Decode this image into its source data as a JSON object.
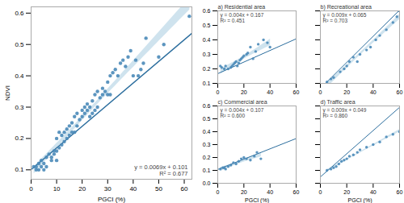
{
  "chart_data": [
    {
      "type": "scatter",
      "x": [
        1,
        2,
        2,
        3,
        3,
        4,
        4,
        5,
        5,
        6,
        6,
        7,
        8,
        8,
        9,
        9,
        10,
        10,
        10,
        11,
        11,
        12,
        12,
        13,
        13,
        14,
        14,
        15,
        15,
        16,
        16,
        17,
        17,
        18,
        18,
        19,
        20,
        20,
        21,
        21,
        22,
        22,
        23,
        23,
        24,
        24,
        25,
        25,
        26,
        26,
        27,
        28,
        28,
        29,
        30,
        30,
        31,
        31,
        32,
        33,
        34,
        35,
        36,
        37,
        38,
        39,
        40,
        41,
        42,
        43,
        44,
        45,
        50,
        52,
        62
      ],
      "values": [
        0.11,
        0.1,
        0.11,
        0.1,
        0.12,
        0.11,
        0.13,
        0.1,
        0.12,
        0.11,
        0.14,
        0.15,
        0.13,
        0.14,
        0.15,
        0.16,
        0.13,
        0.16,
        0.2,
        0.17,
        0.22,
        0.18,
        0.21,
        0.19,
        0.22,
        0.2,
        0.23,
        0.21,
        0.24,
        0.22,
        0.25,
        0.22,
        0.27,
        0.24,
        0.28,
        0.26,
        0.27,
        0.29,
        0.28,
        0.3,
        0.29,
        0.31,
        0.27,
        0.3,
        0.28,
        0.32,
        0.29,
        0.34,
        0.3,
        0.35,
        0.33,
        0.34,
        0.36,
        0.35,
        0.34,
        0.38,
        0.34,
        0.4,
        0.41,
        0.42,
        0.4,
        0.44,
        0.45,
        0.43,
        0.46,
        0.48,
        0.4,
        0.45,
        0.4,
        0.42,
        0.44,
        0.52,
        0.46,
        0.5,
        0.59
      ],
      "color": "#4a89b8",
      "fit_line": {
        "slope": 0.0069,
        "intercept": 0.101,
        "color": "#2c6e9e"
      },
      "ci_band": {
        "color": "#a8cce0"
      },
      "annotations": [
        "y = 0.0069x + 0.101",
        "R² = 0.677"
      ],
      "xlabel": "PGCI (%)",
      "ylabel": "NDVI",
      "xlim": [
        0,
        63
      ],
      "ylim": [
        0.07,
        0.62
      ],
      "xticks": [
        0,
        10,
        20,
        30,
        40,
        50,
        60
      ],
      "yticks": [
        0.1,
        0.2,
        0.3,
        0.4,
        0.5,
        0.6
      ]
    },
    {
      "type": "scatter",
      "title": "a) Residential area",
      "x": [
        2,
        3,
        5,
        6,
        8,
        10,
        11,
        12,
        13,
        14,
        15,
        16,
        17,
        18,
        19,
        20,
        22,
        23,
        25,
        27,
        29,
        31,
        35,
        38,
        40
      ],
      "values": [
        0.22,
        0.21,
        0.2,
        0.22,
        0.2,
        0.21,
        0.22,
        0.23,
        0.24,
        0.25,
        0.22,
        0.24,
        0.26,
        0.27,
        0.28,
        0.29,
        0.3,
        0.31,
        0.35,
        0.27,
        0.32,
        0.37,
        0.4,
        0.38,
        0.35
      ],
      "color": "#4a89b8",
      "fit_line": {
        "slope": 0.004,
        "intercept": 0.167,
        "color": "#2c6e9e"
      },
      "ci_band": {
        "color": "#a8cce0"
      },
      "annotations": [
        "y = 0.004x + 0.167",
        "R² = 0.451"
      ],
      "xlim": [
        0,
        60
      ],
      "ylim": [
        0.1,
        0.6
      ],
      "xticks": [
        0,
        20,
        40,
        60
      ],
      "yticks": [
        0.1,
        0.2,
        0.3,
        0.4,
        0.5,
        0.6
      ]
    },
    {
      "type": "scatter",
      "title": "b) Recreational area",
      "x": [
        5,
        8,
        10,
        15,
        18,
        20,
        22,
        25,
        28,
        30,
        35,
        38,
        42,
        45,
        50,
        55,
        58,
        60
      ],
      "values": [
        0.11,
        0.13,
        0.14,
        0.18,
        0.2,
        0.22,
        0.25,
        0.28,
        0.25,
        0.3,
        0.33,
        0.35,
        0.4,
        0.43,
        0.47,
        0.52,
        0.56,
        0.6
      ],
      "color": "#4a89b8",
      "fit_line": {
        "slope": 0.009,
        "intercept": 0.065,
        "color": "#2c6e9e"
      },
      "ci_band": {
        "color": "#a8cce0"
      },
      "annotations": [
        "y = 0.009x + 0.065",
        "R² = 0.703"
      ],
      "xlim": [
        0,
        60
      ],
      "ylim": [
        0.1,
        0.6
      ],
      "xticks": [
        0,
        20,
        40,
        60
      ],
      "yticks": [
        0.1,
        0.2,
        0.3,
        0.4,
        0.5,
        0.6
      ],
      "tick_labels": "x"
    },
    {
      "type": "scatter",
      "title": "c) Commercial area",
      "x": [
        2,
        4,
        5,
        6,
        8,
        10,
        12,
        14,
        16,
        18,
        20,
        22,
        25,
        28,
        30,
        33
      ],
      "values": [
        0.11,
        0.12,
        0.12,
        0.11,
        0.13,
        0.14,
        0.16,
        0.15,
        0.17,
        0.19,
        0.2,
        0.19,
        0.18,
        0.21,
        0.24,
        0.19
      ],
      "color": "#4a89b8",
      "fit_line": {
        "slope": 0.004,
        "intercept": 0.107,
        "color": "#2c6e9e"
      },
      "ci_band": {
        "color": "#a8cce0"
      },
      "annotations": [
        "y = 0.004x + 0.107",
        "R² = 0.600"
      ],
      "xlabel": "PGCI (%)",
      "xlim": [
        0,
        60
      ],
      "ylim": [
        0.0,
        0.6
      ],
      "xticks": [
        0,
        20,
        40,
        60
      ],
      "yticks": [
        {
          "value": 0,
          "label": "0.0"
        },
        0.1,
        0.2,
        0.3,
        0.4,
        0.5,
        0.6
      ]
    },
    {
      "type": "scatter",
      "title": "d) Traffic area",
      "x": [
        5,
        8,
        10,
        12,
        14,
        16,
        18,
        20,
        22,
        25,
        28,
        30,
        35,
        40,
        45,
        50,
        55,
        60
      ],
      "values": [
        0.1,
        0.11,
        0.12,
        0.13,
        0.15,
        0.17,
        0.18,
        0.19,
        0.21,
        0.22,
        0.24,
        0.26,
        0.28,
        0.3,
        0.32,
        0.36,
        0.38,
        0.4
      ],
      "color": "#4a89b8",
      "fit_line": {
        "slope": 0.009,
        "intercept": 0.049,
        "color": "#2c6e9e"
      },
      "ci_band": {
        "color": "#a8cce0"
      },
      "annotations": [
        "y = 0.009x + 0.049",
        "R² = 0.860"
      ],
      "xlabel": "PGCI (%)",
      "xlim": [
        0,
        60
      ],
      "ylim": [
        0.0,
        0.6
      ],
      "xticks": [
        0,
        20,
        40,
        60
      ],
      "yticks": [
        {
          "value": 0,
          "label": "0.0"
        },
        0.1,
        0.2,
        0.3,
        0.4,
        0.5,
        0.6
      ],
      "tick_labels": "x"
    }
  ]
}
